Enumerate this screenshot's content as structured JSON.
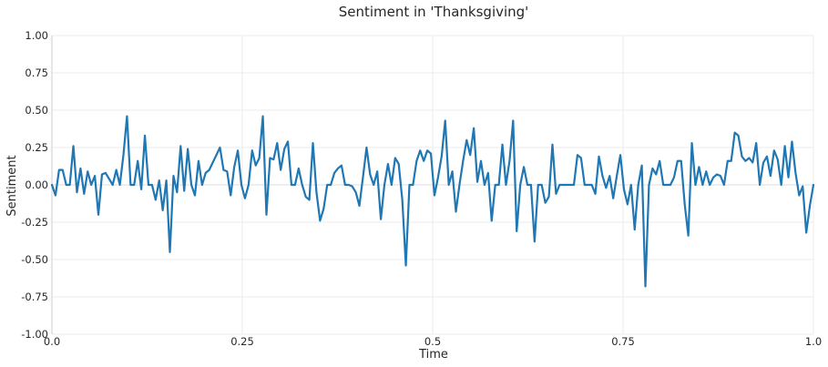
{
  "chart_data": {
    "type": "line",
    "title": "Sentiment in 'Thanksgiving'",
    "xlabel": "Time",
    "ylabel": "Sentiment",
    "xlim": [
      0.0,
      1.0
    ],
    "ylim": [
      -1.0,
      1.0
    ],
    "x_ticks": [
      "0.0",
      "0.25",
      "0.5",
      "0.75",
      "1.0"
    ],
    "y_ticks": [
      "-1.00",
      "-0.75",
      "-0.50",
      "-0.25",
      "0.00",
      "0.25",
      "0.50",
      "0.75",
      "1.00"
    ],
    "grid": true,
    "zero_line": true,
    "line_color": "#1f77b4",
    "series": [
      {
        "values": [
          0.0,
          -0.07,
          0.1,
          0.1,
          0.0,
          0.0,
          0.26,
          -0.05,
          0.11,
          -0.06,
          0.09,
          0.0,
          0.06,
          -0.2,
          0.07,
          0.08,
          0.04,
          0.0,
          0.1,
          0.0,
          0.2,
          0.46,
          0.0,
          0.0,
          0.16,
          -0.03,
          0.33,
          0.0,
          0.0,
          -0.1,
          0.03,
          -0.17,
          0.03,
          -0.45,
          0.06,
          -0.05,
          0.26,
          -0.04,
          0.24,
          0.0,
          -0.07,
          0.16,
          0.0,
          0.08,
          0.1,
          0.15,
          0.2,
          0.25,
          0.1,
          0.09,
          -0.07,
          0.12,
          0.23,
          0.0,
          -0.09,
          0.0,
          0.23,
          0.13,
          0.18,
          0.46,
          -0.2,
          0.18,
          0.17,
          0.28,
          0.1,
          0.24,
          0.29,
          0.0,
          0.0,
          0.11,
          0.0,
          -0.08,
          -0.1,
          0.28,
          -0.05,
          -0.24,
          -0.16,
          0.0,
          0.0,
          0.08,
          0.11,
          0.13,
          0.0,
          0.0,
          -0.01,
          -0.05,
          -0.14,
          0.05,
          0.25,
          0.07,
          0.0,
          0.09,
          -0.23,
          0.0,
          0.14,
          0.0,
          0.18,
          0.14,
          -0.1,
          -0.54,
          0.0,
          0.0,
          0.16,
          0.23,
          0.16,
          0.23,
          0.21,
          -0.07,
          0.05,
          0.19,
          0.43,
          0.0,
          0.09,
          -0.18,
          0.0,
          0.16,
          0.3,
          0.2,
          0.38,
          0.02,
          0.16,
          0.0,
          0.08,
          -0.24,
          0.0,
          0.0,
          0.27,
          0.0,
          0.16,
          0.43,
          -0.31,
          0.0,
          0.12,
          0.0,
          0.0,
          -0.38,
          0.0,
          0.0,
          -0.12,
          -0.08,
          0.27,
          -0.06,
          0.0,
          0.0,
          0.0,
          0.0,
          0.0,
          0.2,
          0.18,
          0.0,
          0.0,
          0.0,
          -0.06,
          0.19,
          0.06,
          -0.02,
          0.06,
          -0.09,
          0.06,
          0.2,
          -0.03,
          -0.13,
          0.0,
          -0.3,
          0.0,
          0.13,
          -0.68,
          0.0,
          0.11,
          0.07,
          0.16,
          0.0,
          0.0,
          0.0,
          0.05,
          0.16,
          0.16,
          -0.13,
          -0.34,
          0.28,
          0.0,
          0.12,
          0.0,
          0.09,
          0.0,
          0.05,
          0.07,
          0.06,
          0.0,
          0.16,
          0.16,
          0.35,
          0.33,
          0.19,
          0.16,
          0.18,
          0.15,
          0.28,
          0.0,
          0.15,
          0.19,
          0.06,
          0.23,
          0.17,
          0.0,
          0.26,
          0.05,
          0.29,
          0.08,
          -0.07,
          -0.01,
          -0.32,
          -0.14,
          0.0
        ]
      }
    ]
  }
}
